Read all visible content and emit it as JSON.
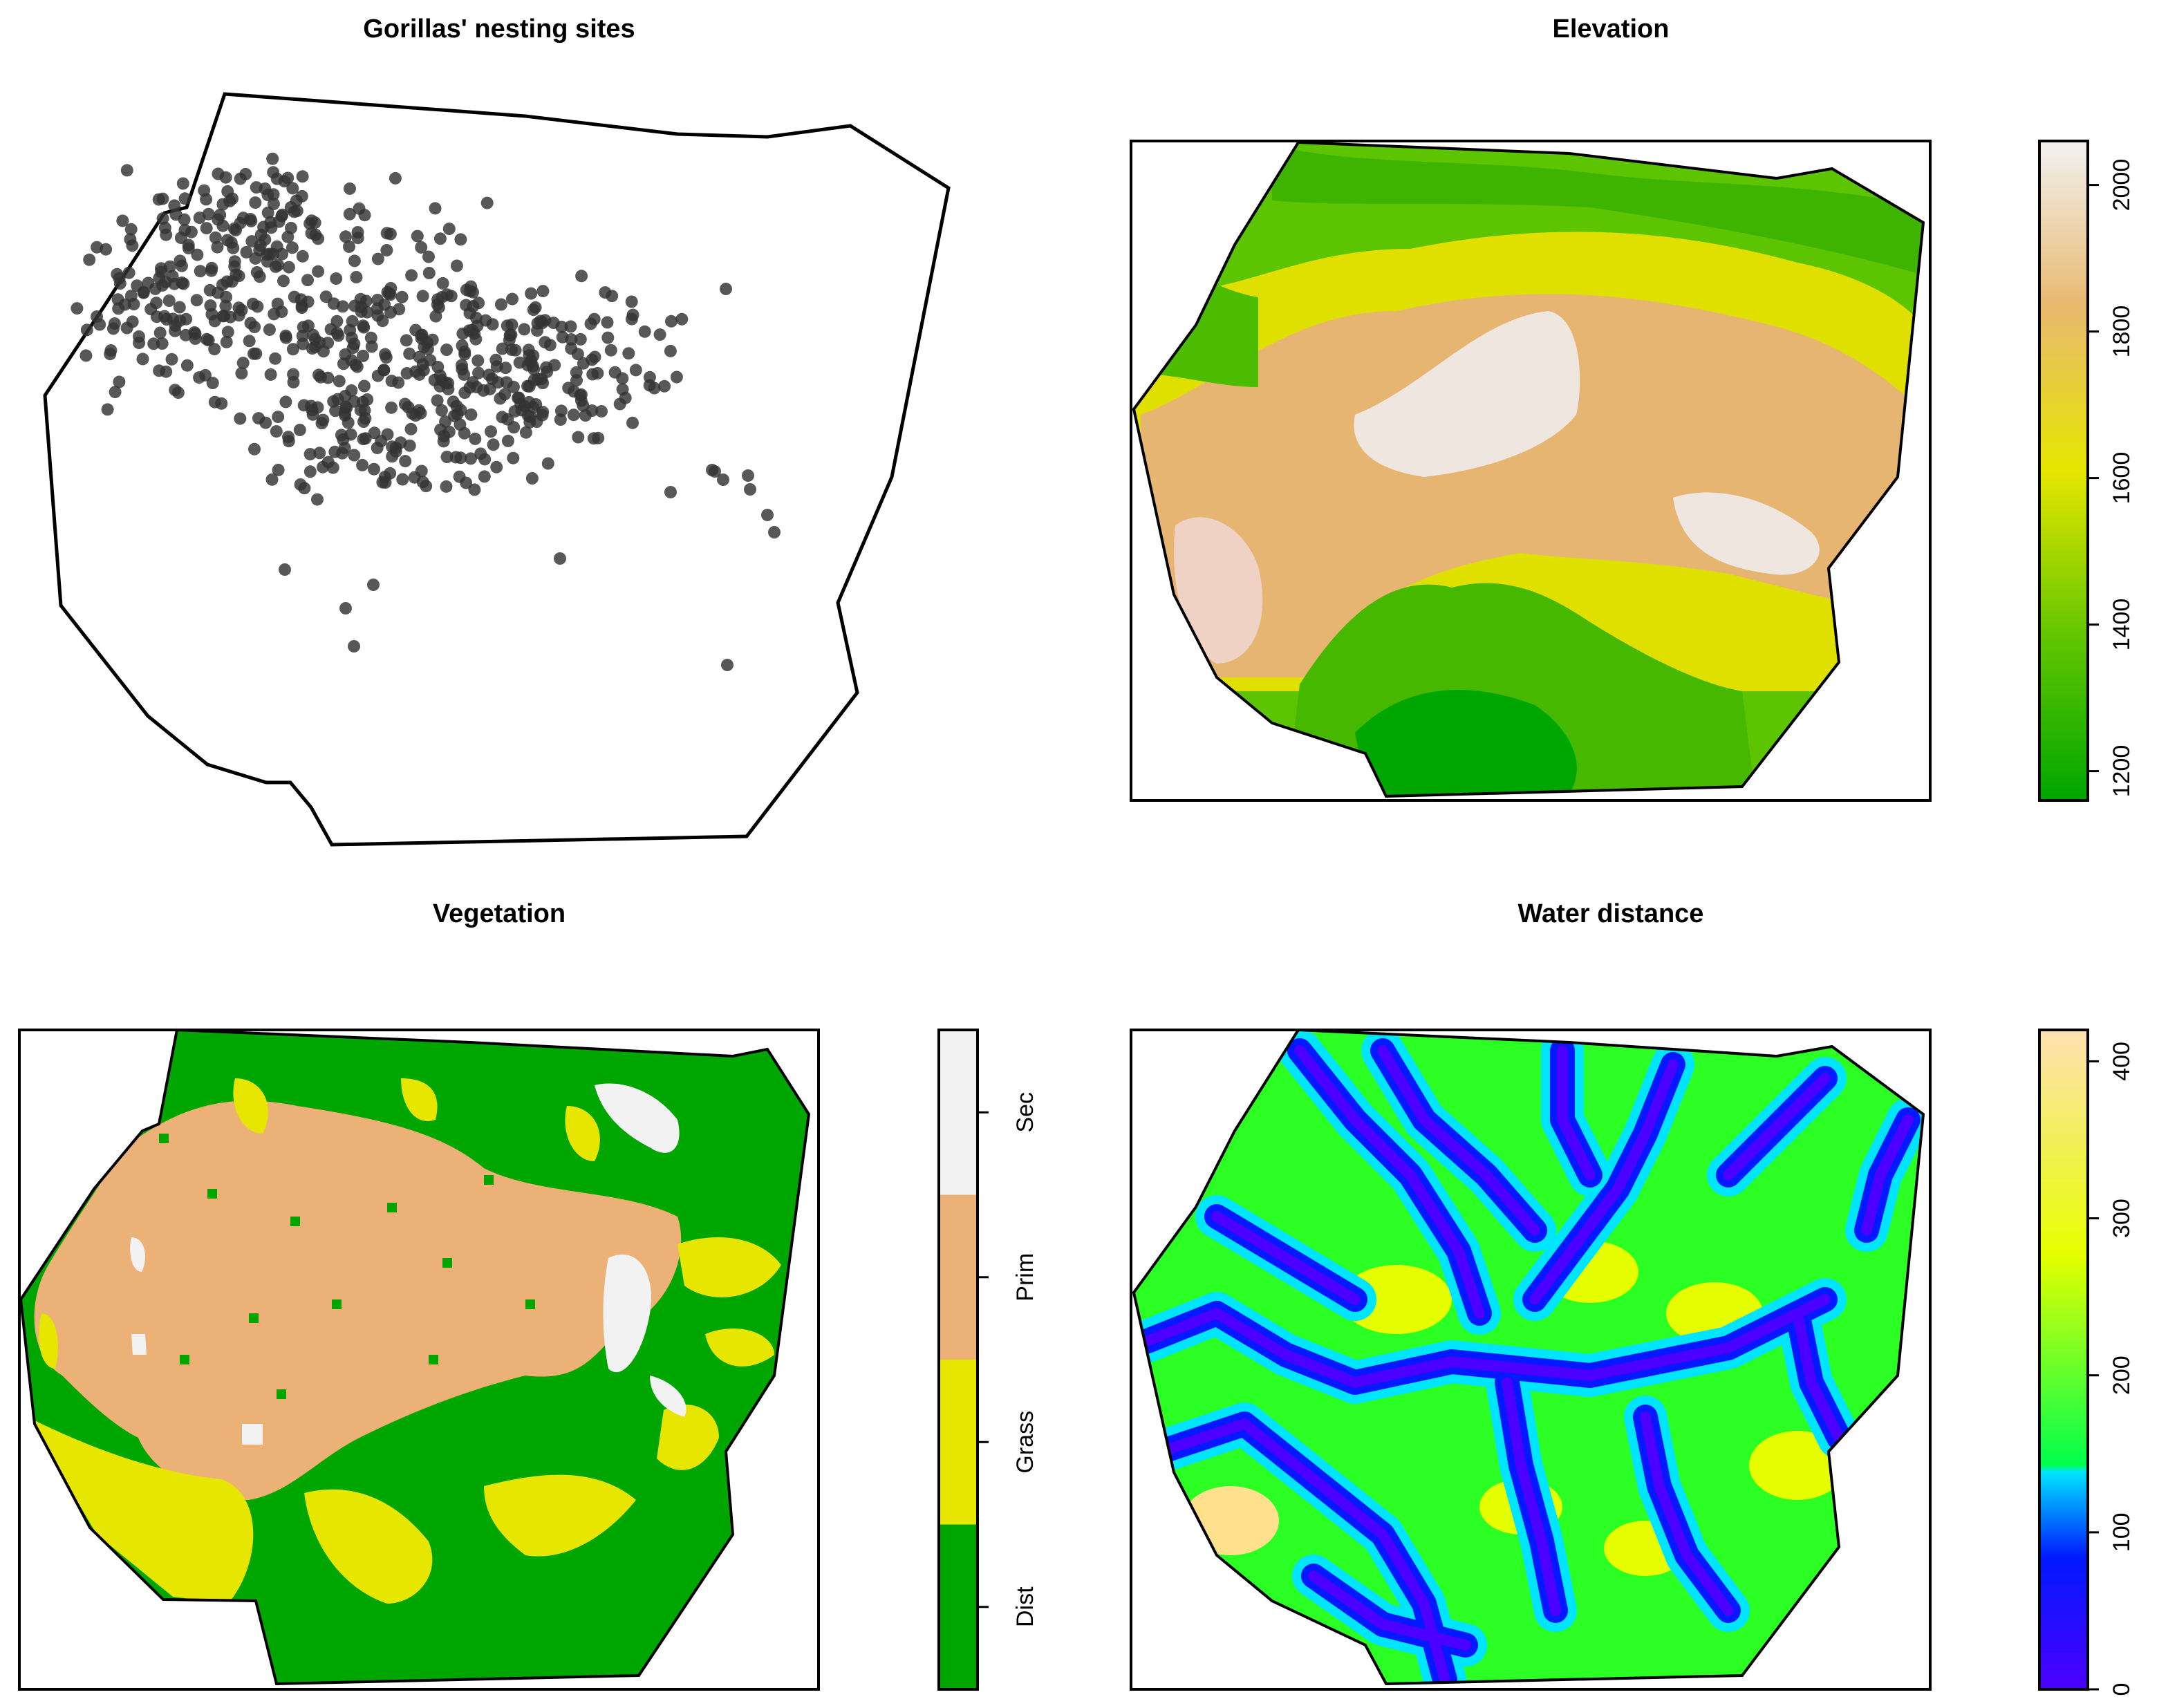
{
  "chart_data": [
    {
      "type": "scatter",
      "title": "Gorillas' nesting sites",
      "description_points": "nest locations inside study-area boundary (approx. 650 points)",
      "point_color": "#333333"
    },
    {
      "type": "heatmap",
      "title": "Elevation",
      "colorbar": {
        "ticks": [
          1200,
          1400,
          1600,
          1800,
          2000
        ],
        "range": [
          1160,
          2060
        ],
        "colors": [
          "#00a600",
          "#63c600",
          "#e6e600",
          "#e8b96f",
          "#f2f2f2"
        ]
      }
    },
    {
      "type": "heatmap",
      "title": "Vegetation",
      "legend": [
        {
          "label": "Dist",
          "color": "#00a600"
        },
        {
          "label": "Grass",
          "color": "#e6e600"
        },
        {
          "label": "Prim",
          "color": "#ecb176"
        },
        {
          "label": "Sec",
          "color": "#f2f2f2"
        }
      ]
    },
    {
      "type": "heatmap",
      "title": "Water distance",
      "colorbar": {
        "ticks": [
          0,
          100,
          200,
          300,
          400
        ],
        "range": [
          0,
          420
        ],
        "colors": [
          "#4c00ff",
          "#0019ff",
          "#00e5ff",
          "#00ff4d",
          "#e6ff00",
          "#ffe0b3"
        ]
      }
    }
  ]
}
